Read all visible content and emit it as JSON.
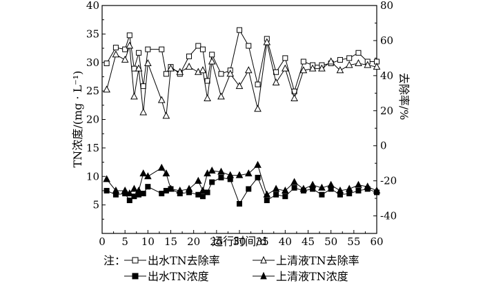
{
  "chart_data": {
    "type": "line",
    "xlabel": "运行时间/d",
    "ylabel_left": "TN浓度/(mg · L⁻¹)",
    "ylabel_right": "去除率/%",
    "xlim": [
      0,
      60
    ],
    "ylim_left": [
      0,
      40
    ],
    "ylim_right": [
      -50,
      80
    ],
    "xticks": [
      0,
      5,
      10,
      15,
      20,
      25,
      30,
      35,
      40,
      45,
      50,
      55,
      60
    ],
    "yticks_left": [
      5,
      10,
      15,
      20,
      25,
      30,
      35,
      40
    ],
    "yticks_right": [
      -40,
      -20,
      0,
      20,
      40,
      60,
      80
    ],
    "grid": false,
    "legend_position": "bottom",
    "legend_prefix": "注：",
    "series": [
      {
        "name": "出水TN去除率",
        "axis": "right",
        "marker": "square-open",
        "x": [
          1,
          3,
          5,
          6,
          7,
          8,
          9,
          10,
          13,
          14,
          15,
          17,
          19,
          21,
          22,
          23,
          24,
          26,
          28,
          30,
          32,
          34,
          36,
          38,
          40,
          42,
          44,
          46,
          48,
          50,
          52,
          54,
          56,
          58,
          60
        ],
        "values": [
          47,
          56,
          55,
          63,
          44,
          53,
          34,
          55,
          55,
          41,
          45,
          41,
          51,
          57,
          55,
          37,
          52,
          41,
          43,
          66,
          57,
          35,
          61,
          42,
          50,
          31,
          48,
          46,
          46,
          47,
          49,
          50,
          53,
          48,
          48
        ]
      },
      {
        "name": "上清液TN去除率",
        "axis": "right",
        "marker": "triangle-open",
        "x": [
          1,
          3,
          5,
          6,
          7,
          8,
          9,
          10,
          13,
          14,
          15,
          17,
          19,
          21,
          22,
          23,
          24,
          26,
          28,
          30,
          32,
          34,
          36,
          38,
          40,
          42,
          44,
          46,
          48,
          50,
          52,
          54,
          56,
          58,
          60
        ],
        "values": [
          32,
          52,
          49,
          57,
          28,
          44,
          19,
          47,
          26,
          17,
          44,
          42,
          45,
          42,
          43,
          27,
          48,
          28,
          41,
          34,
          43,
          21,
          59,
          36,
          44,
          27,
          43,
          44,
          44,
          48,
          43,
          46,
          47,
          46,
          45
        ]
      },
      {
        "name": "出水TN浓度",
        "axis": "left",
        "marker": "square-filled",
        "x": [
          1,
          3,
          5,
          6,
          7,
          8,
          9,
          10,
          13,
          14,
          15,
          17,
          19,
          21,
          22,
          23,
          24,
          26,
          28,
          30,
          32,
          34,
          36,
          38,
          40,
          42,
          44,
          46,
          48,
          50,
          52,
          54,
          56,
          58,
          60
        ],
        "values": [
          7.5,
          6.8,
          7.0,
          5.8,
          6.5,
          6.8,
          7.0,
          8.2,
          7.0,
          7.5,
          7.8,
          7.0,
          7.2,
          6.8,
          6.5,
          7.2,
          9.0,
          9.8,
          9.5,
          5.2,
          7.8,
          9.8,
          5.8,
          6.8,
          6.5,
          8.0,
          7.5,
          7.8,
          6.8,
          7.8,
          6.8,
          7.0,
          7.5,
          7.8,
          7.2
        ]
      },
      {
        "name": "上清液TN浓度",
        "axis": "left",
        "marker": "triangle-filled",
        "x": [
          1,
          3,
          5,
          6,
          7,
          8,
          9,
          10,
          13,
          14,
          15,
          17,
          19,
          21,
          22,
          23,
          24,
          26,
          28,
          30,
          32,
          34,
          36,
          38,
          40,
          42,
          44,
          46,
          48,
          50,
          52,
          54,
          56,
          58,
          60
        ],
        "values": [
          9.5,
          7.5,
          7.5,
          7.0,
          7.8,
          7.5,
          10.5,
          10.0,
          11.5,
          10.5,
          7.8,
          7.5,
          7.8,
          9.2,
          7.5,
          10.5,
          11.0,
          10.8,
          10.2,
          10.2,
          10.5,
          12.0,
          6.8,
          7.8,
          7.5,
          9.0,
          7.8,
          8.5,
          8.0,
          8.5,
          7.5,
          7.8,
          8.5,
          8.2,
          7.5
        ]
      }
    ]
  }
}
